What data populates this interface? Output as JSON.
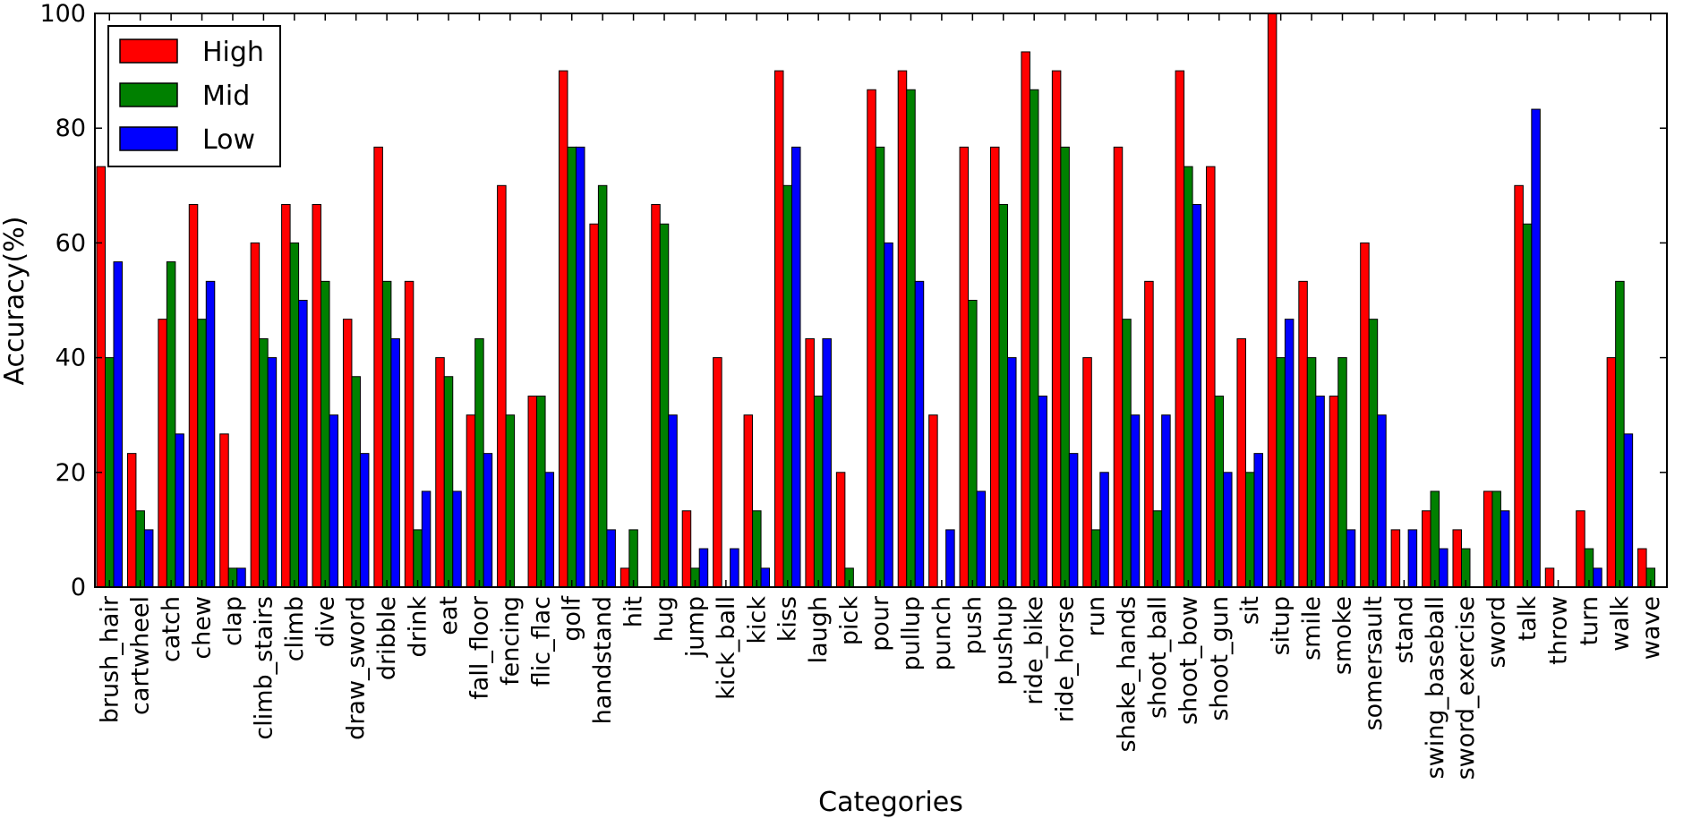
{
  "chart_data": {
    "type": "bar",
    "title": "",
    "xlabel": "Categories",
    "ylabel": "Accuracy(%)",
    "ylim": [
      0,
      100
    ],
    "yticks": [
      0,
      20,
      40,
      60,
      80,
      100
    ],
    "grid": false,
    "legend_position": "top-left",
    "categories": [
      "brush_hair",
      "cartwheel",
      "catch",
      "chew",
      "clap",
      "climb_stairs",
      "climb",
      "dive",
      "draw_sword",
      "dribble",
      "drink",
      "eat",
      "fall_floor",
      "fencing",
      "flic_flac",
      "golf",
      "handstand",
      "hit",
      "hug",
      "jump",
      "kick_ball",
      "kick",
      "kiss",
      "laugh",
      "pick",
      "pour",
      "pullup",
      "punch",
      "push",
      "pushup",
      "ride_bike",
      "ride_horse",
      "run",
      "shake_hands",
      "shoot_ball",
      "shoot_bow",
      "shoot_gun",
      "sit",
      "situp",
      "smile",
      "smoke",
      "somersault",
      "stand",
      "swing_baseball",
      "sword_exercise",
      "sword",
      "talk",
      "throw",
      "turn",
      "walk",
      "wave"
    ],
    "series": [
      {
        "name": "High",
        "color": "#ff0000",
        "values": [
          73.3,
          23.3,
          46.7,
          66.7,
          26.7,
          60,
          66.7,
          66.7,
          46.7,
          76.7,
          53.3,
          40,
          30,
          70,
          33.3,
          90,
          63.3,
          3.3,
          66.7,
          13.3,
          40,
          30,
          90,
          43.3,
          20,
          86.7,
          90,
          30,
          76.7,
          76.7,
          93.3,
          90,
          40,
          76.7,
          53.3,
          90,
          73.3,
          43.3,
          100,
          53.3,
          33.3,
          60,
          10,
          13.3,
          10,
          16.7,
          70,
          3.3,
          13.3,
          40,
          6.7
        ]
      },
      {
        "name": "Mid",
        "color": "#008000",
        "values": [
          40,
          13.3,
          56.7,
          46.7,
          3.3,
          43.3,
          60,
          53.3,
          36.7,
          53.3,
          10,
          36.7,
          43.3,
          30,
          33.3,
          76.7,
          70,
          10,
          63.3,
          3.3,
          0,
          13.3,
          70,
          33.3,
          3.3,
          76.7,
          86.7,
          0,
          50,
          66.7,
          86.7,
          76.7,
          10,
          46.7,
          13.3,
          73.3,
          33.3,
          20,
          40,
          40,
          40,
          46.7,
          0,
          16.7,
          6.7,
          16.7,
          63.3,
          0,
          6.7,
          53.3,
          3.3
        ]
      },
      {
        "name": "Low",
        "color": "#0000ff",
        "values": [
          56.7,
          10,
          26.7,
          53.3,
          3.3,
          40,
          50,
          30,
          23.3,
          43.3,
          16.7,
          16.7,
          23.3,
          0,
          20,
          76.7,
          10,
          0,
          30,
          6.7,
          6.7,
          3.3,
          76.7,
          43.3,
          0,
          60,
          53.3,
          10,
          16.7,
          40,
          33.3,
          23.3,
          20,
          30,
          30,
          66.7,
          20,
          23.3,
          46.7,
          33.3,
          10,
          30,
          10,
          6.7,
          0,
          13.3,
          83.3,
          0,
          3.3,
          26.7,
          0
        ]
      }
    ]
  }
}
